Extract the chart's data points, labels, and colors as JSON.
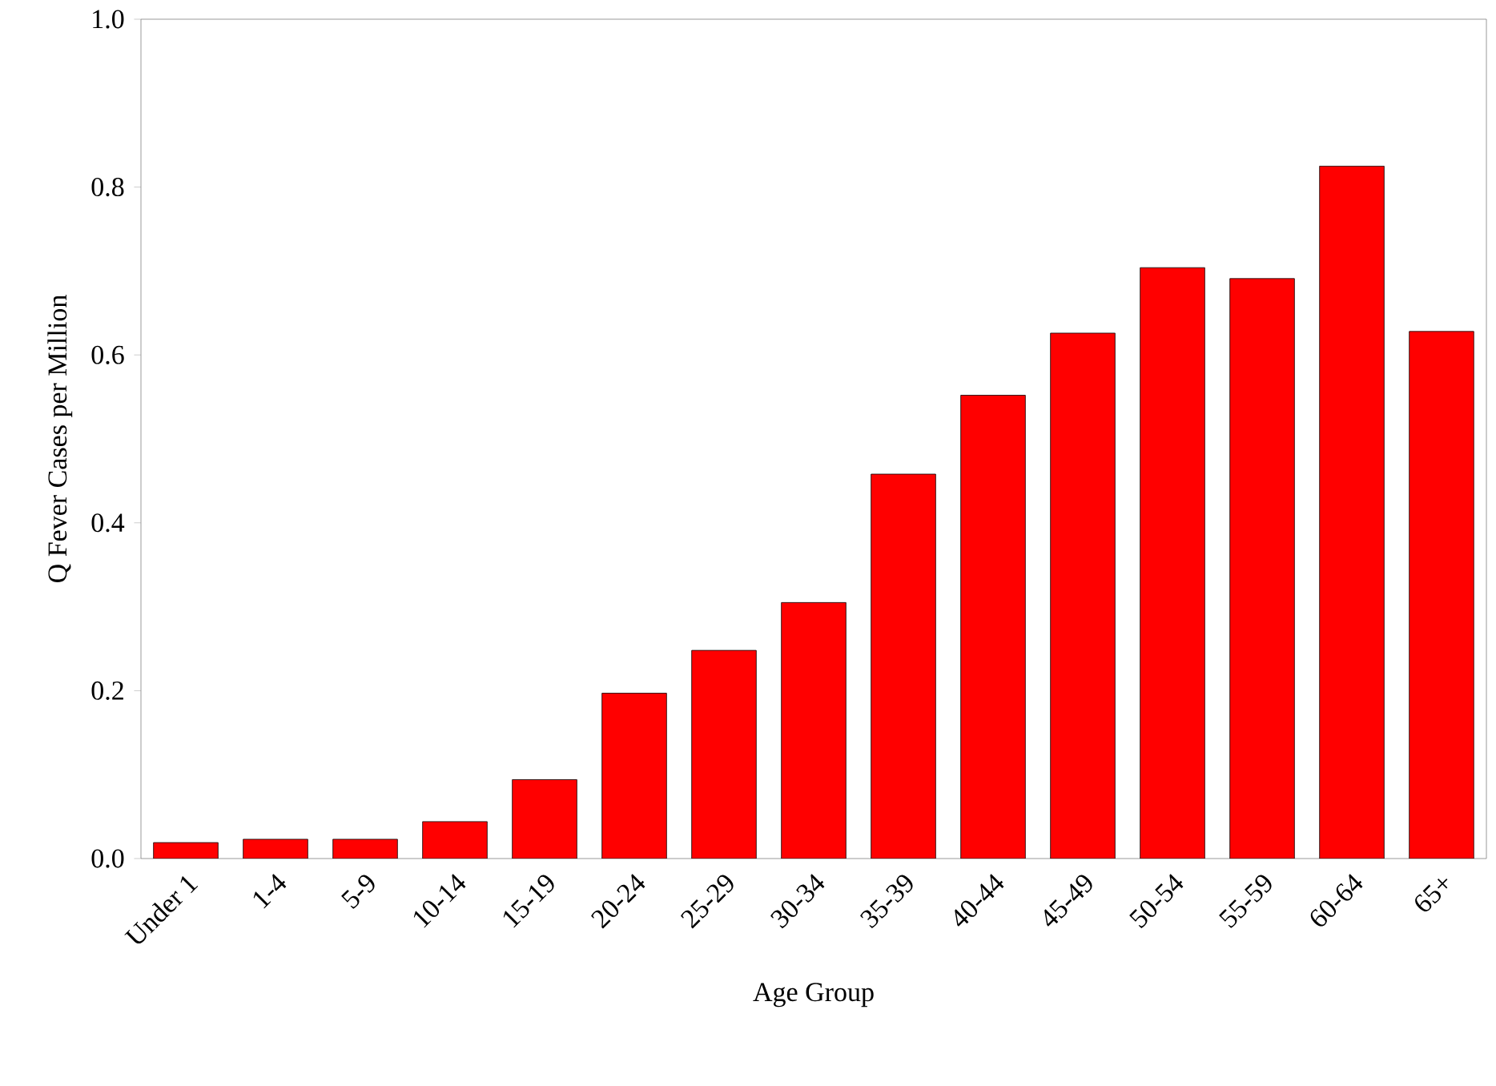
{
  "chart_data": {
    "type": "bar",
    "xlabel": "Age Group",
    "ylabel": "Q Fever Cases per Million",
    "categories": [
      "Under 1",
      "1-4",
      "5-9",
      "10-14",
      "15-19",
      "20-24",
      "25-29",
      "30-34",
      "35-39",
      "40-44",
      "45-49",
      "50-54",
      "55-59",
      "60-64",
      "65+"
    ],
    "values": [
      0.019,
      0.023,
      0.023,
      0.044,
      0.094,
      0.197,
      0.248,
      0.305,
      0.458,
      0.552,
      0.626,
      0.704,
      0.691,
      0.825,
      0.628
    ],
    "color": "#ff0000",
    "ylim": [
      0,
      1.0
    ],
    "yticks": [
      {
        "value": 0,
        "label": "0.0"
      },
      {
        "value": 0.2,
        "label": "0.2"
      },
      {
        "value": 0.4,
        "label": "0.4"
      },
      {
        "value": 0.6,
        "label": "0.6"
      },
      {
        "value": 0.8,
        "label": "0.8"
      },
      {
        "value": 1.0,
        "label": "1.0"
      }
    ],
    "grid": false
  }
}
